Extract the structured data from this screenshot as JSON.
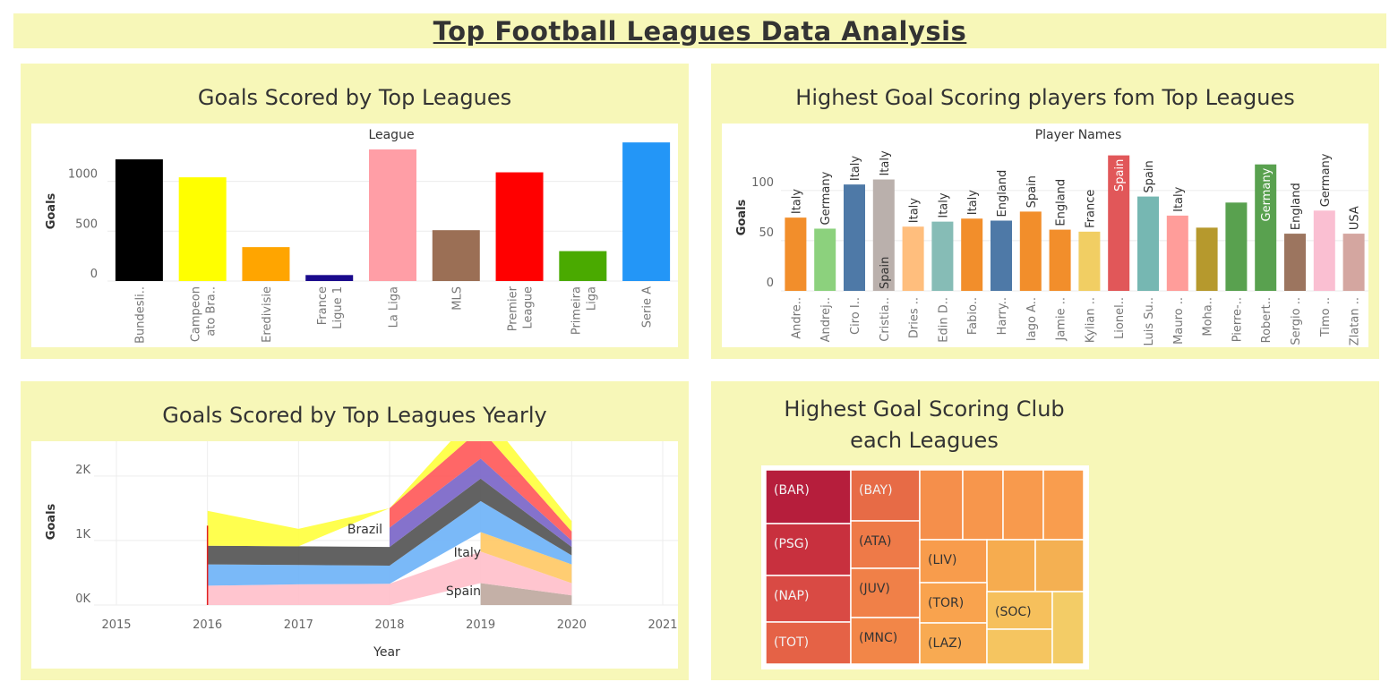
{
  "dashboard": {
    "title": "Top Football Leagues Data Analysis"
  },
  "colors": {
    "panel_bg": "#f7f7b8"
  },
  "chart_data": [
    {
      "type": "bar",
      "title": "Goals Scored by Top Leagues",
      "header": "League",
      "ylabel": "Goals",
      "ylim": [
        0,
        1400
      ],
      "yticks": [
        0,
        500,
        1000
      ],
      "categories": [
        [
          "Bundesli.."
        ],
        [
          "Campeon",
          "ato Bra.."
        ],
        [
          "Eredivisie"
        ],
        [
          "France",
          "Ligue 1"
        ],
        [
          "La Liga"
        ],
        [
          "MLS"
        ],
        [
          "Premier",
          "League"
        ],
        [
          "Primeira",
          "Liga"
        ],
        [
          "Serie A"
        ]
      ],
      "values": [
        1220,
        1040,
        340,
        60,
        1320,
        510,
        1090,
        300,
        1390
      ],
      "colors": [
        "#000000",
        "#ffff00",
        "#ffa500",
        "#1a0a8c",
        "#ff9ea6",
        "#9b6f55",
        "#ff0000",
        "#4aaa00",
        "#2396f7"
      ]
    },
    {
      "type": "bar",
      "title": "Highest Goal Scoring players fom Top Leagues",
      "header": "Player Names",
      "ylabel": "Goals",
      "ylim": [
        0,
        140
      ],
      "yticks": [
        0,
        50,
        100
      ],
      "categories": [
        "Andre..",
        "Andrej..",
        "Ciro I..",
        "Cristia..",
        "Dries ..",
        "Edin D..",
        "Fabio..",
        "Harry..",
        "Iago A..",
        "Jamie ..",
        "Kylian ..",
        "Lionel..",
        "Luis Su..",
        "Mauro ..",
        "Moha..",
        "Pierre-..",
        "Robert..",
        "Sergio ..",
        "Timo ..",
        "Zlatan .."
      ],
      "values": [
        73,
        62,
        106,
        111,
        64,
        69,
        72,
        70,
        79,
        61,
        59,
        135,
        94,
        75,
        63,
        88,
        126,
        57,
        80,
        57
      ],
      "labels": [
        "Italy",
        "Germany",
        "Italy",
        "Italy|Spain",
        "Italy",
        "Italy",
        "Italy",
        "England",
        "Spain",
        "England",
        "France",
        "Spain",
        "Spain",
        "Italy",
        "",
        "",
        "Germany",
        "England",
        "Germany",
        "USA"
      ],
      "colors": [
        "#f28e2b",
        "#8cd17d",
        "#4e79a7",
        "#bab0ac",
        "#ffbe7d",
        "#86bcb6",
        "#f28e2b",
        "#4e79a7",
        "#f28e2b",
        "#f28e2b",
        "#f1ce63",
        "#e15759",
        "#76b7b2",
        "#ff9d9a",
        "#b6992d",
        "#59a14f",
        "#59a14f",
        "#9c755f",
        "#fabfd2",
        "#d4a6a0"
      ]
    },
    {
      "type": "area",
      "title": "Goals Scored by Top Leagues Yearly",
      "xlabel": "Year",
      "ylabel": "Goals",
      "xlim": [
        2015,
        2021
      ],
      "xticks": [
        2015,
        2016,
        2017,
        2018,
        2019,
        2020,
        2021
      ],
      "ylim": [
        0,
        2400
      ],
      "ytick_labels": [
        "0K",
        "1K",
        "2K"
      ],
      "annotations": [
        "Brazil",
        "Italy",
        "Spain"
      ],
      "stack_colors": [
        "#bfa9a0",
        "#ffc0cb",
        "#ffc966",
        "#6fb3f7",
        "#555555",
        "#7b66c8",
        "#ff5a5a",
        "#ffff40"
      ],
      "series": [
        {
          "color": "#bfa9a0",
          "points": [
            [
              2019,
              340
            ],
            [
              2020,
              150
            ]
          ]
        },
        {
          "color": "#ffc0cb",
          "points": [
            [
              2016,
              300
            ],
            [
              2017,
              320
            ],
            [
              2018,
              330
            ],
            [
              2019,
              490
            ],
            [
              2020,
              190
            ]
          ]
        },
        {
          "color": "#ffc966",
          "points": [
            [
              2019,
              300
            ],
            [
              2020,
              290
            ]
          ]
        },
        {
          "color": "#6fb3f7",
          "points": [
            [
              2016,
              330
            ],
            [
              2017,
              300
            ],
            [
              2018,
              280
            ],
            [
              2019,
              480
            ],
            [
              2020,
              140
            ]
          ]
        },
        {
          "color": "#555555",
          "points": [
            [
              2016,
              290
            ],
            [
              2017,
              290
            ],
            [
              2018,
              290
            ],
            [
              2019,
              350
            ],
            [
              2020,
              130
            ]
          ]
        },
        {
          "color": "#7b66c8",
          "points": [
            [
              2018,
              300
            ],
            [
              2019,
              310
            ],
            [
              2020,
              100
            ]
          ]
        },
        {
          "color": "#ff5a5a",
          "points": [
            [
              2018,
              300
            ],
            [
              2019,
              460
            ],
            [
              2020,
              140
            ]
          ]
        },
        {
          "color": "#ffff40",
          "points": [
            [
              2016,
              540
            ],
            [
              2017,
              270
            ],
            [
              2018,
              0
            ],
            [
              2019,
              320
            ],
            [
              2020,
              160
            ]
          ]
        }
      ]
    },
    {
      "type": "treemap",
      "title": [
        "Highest Goal Scoring Club",
        "each Leagues"
      ],
      "labels": [
        "(BAR)",
        "(PSG)",
        "(NAP)",
        "(TOT)",
        "(BAY)",
        "(ATA)",
        "(JUV)",
        "(MNC)",
        "(LIV)",
        "(TOR)",
        "(LAZ)",
        "(SOC)"
      ]
    }
  ]
}
